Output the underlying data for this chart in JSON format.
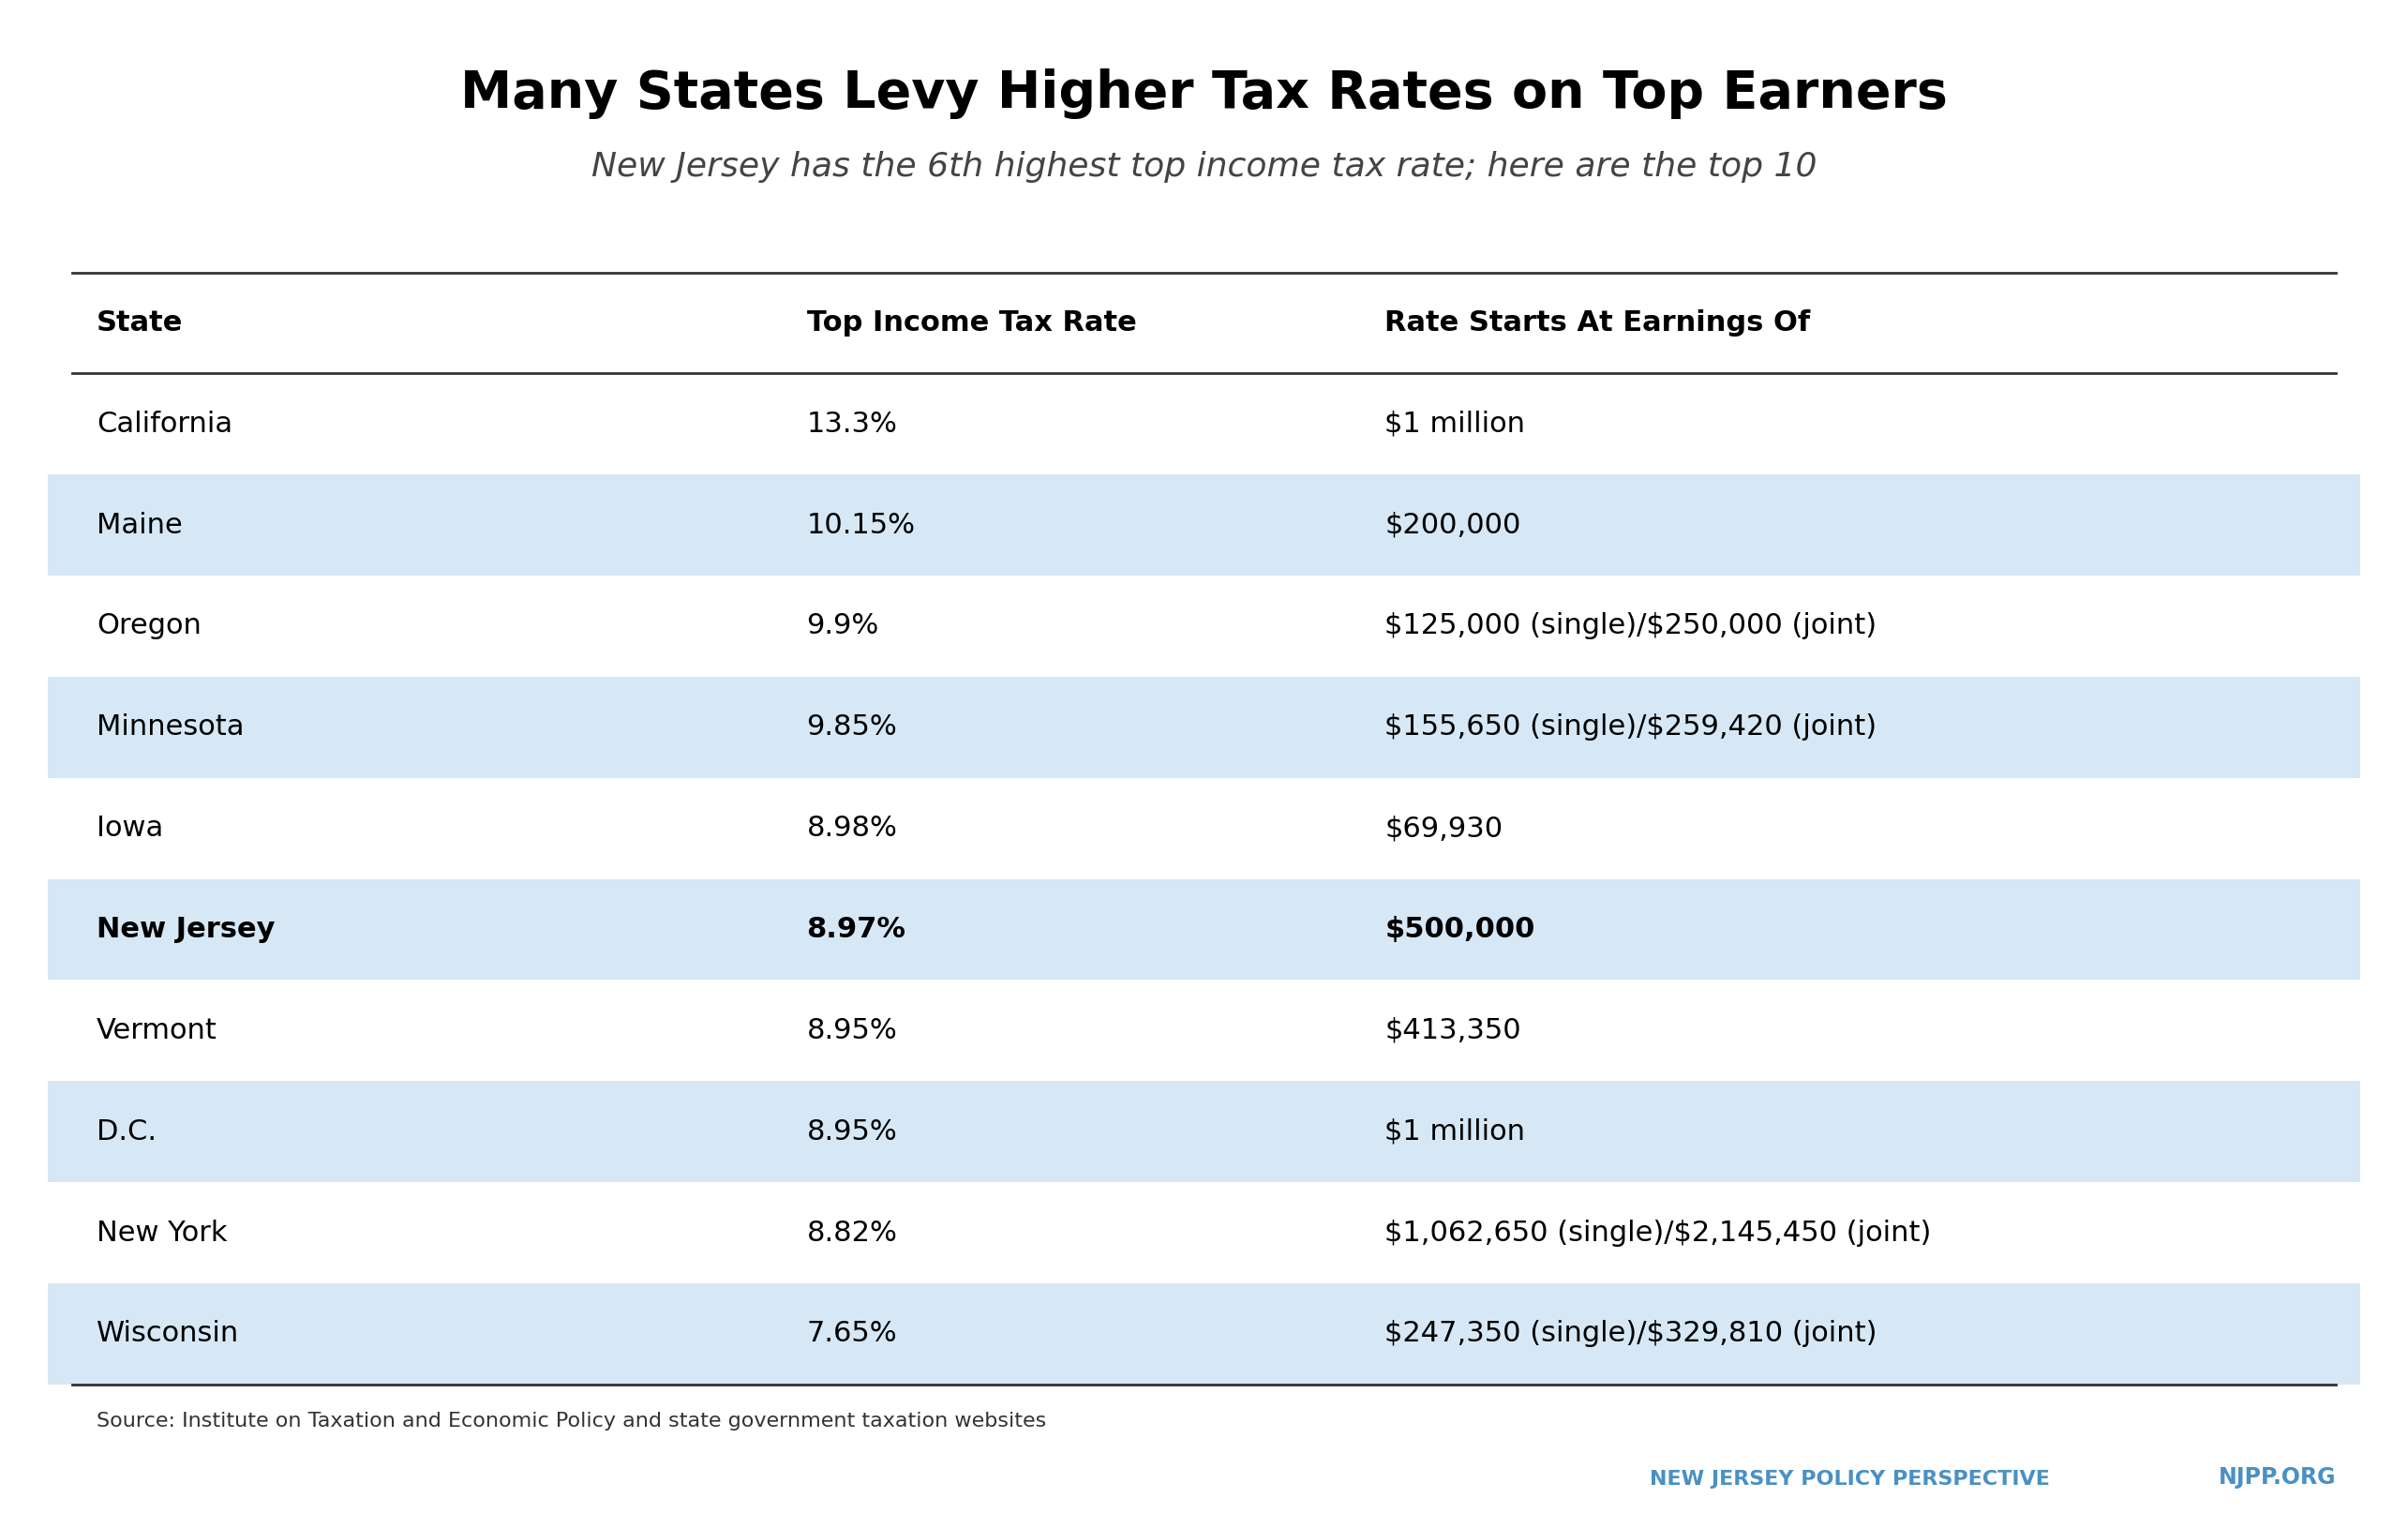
{
  "title": "Many States Levy Higher Tax Rates on Top Earners",
  "subtitle": "New Jersey has the 6th highest top income tax rate; here are the top 10",
  "col_headers": [
    "State",
    "Top Income Tax Rate",
    "Rate Starts At Earnings Of"
  ],
  "rows": [
    [
      "California",
      "13.3%",
      "$1 million"
    ],
    [
      "Maine",
      "10.15%",
      "$200,000"
    ],
    [
      "Oregon",
      "9.9%",
      "$125,000 (single)/$250,000 (joint)"
    ],
    [
      "Minnesota",
      "9.85%",
      "$155,650 (single)/$259,420 (joint)"
    ],
    [
      "Iowa",
      "8.98%",
      "$69,930"
    ],
    [
      "New Jersey",
      "8.97%",
      "$500,000"
    ],
    [
      "Vermont",
      "8.95%",
      "$413,350"
    ],
    [
      "D.C.",
      "8.95%",
      "$1 million"
    ],
    [
      "New York",
      "8.82%",
      "$1,062,650 (single)/$2,145,450 (joint)"
    ],
    [
      "Wisconsin",
      "7.65%",
      "$247,350 (single)/$329,810 (joint)"
    ]
  ],
  "highlighted_rows": [
    1,
    3,
    5,
    7,
    9
  ],
  "bold_row": 5,
  "highlight_color": "#d6e8f5",
  "title_color": "#000000",
  "source_text": "Source: Institute on Taxation and Economic Policy and state government taxation websites",
  "footer_left": "NEW JERSEY POLICY PERSPECTIVE",
  "footer_right": "NJPP.ORG",
  "footer_color": "#4a90c4",
  "line_color": "#333333",
  "text_color": "#000000",
  "col_header_color": "#000000",
  "bg_color": "#ffffff"
}
